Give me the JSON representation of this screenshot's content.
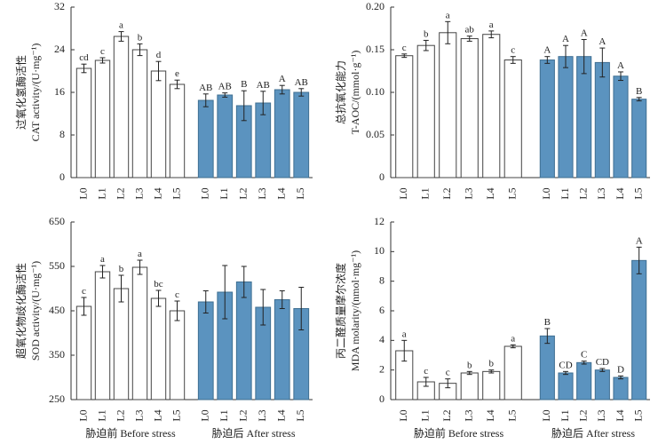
{
  "colors": {
    "after": "#5b93bf",
    "before": "#ffffff"
  },
  "chart_data": [
    {
      "type": "bar",
      "ylabel_cn": "过氧化氢酶活性",
      "ylabel_en": "CAT activity/(U·mg⁻¹)",
      "ylim": [
        0,
        32
      ],
      "yticks": [
        "0",
        "8",
        "16",
        "24",
        "32"
      ],
      "categories": [
        "L0",
        "L1",
        "L2",
        "L3",
        "L4",
        "L5"
      ],
      "group_labels": [
        "",
        ""
      ],
      "series": [
        {
          "name": "Before stress",
          "values": [
            20.5,
            22,
            26.5,
            24,
            20,
            17.5
          ],
          "errors": [
            0.8,
            0.5,
            0.9,
            1.1,
            1.8,
            0.8
          ],
          "letters": [
            "cd",
            "c",
            "a",
            "b",
            "d",
            "e"
          ]
        },
        {
          "name": "After stress",
          "values": [
            14.5,
            15.5,
            13.5,
            14,
            16.5,
            16
          ],
          "errors": [
            1.2,
            0.4,
            2.8,
            2.2,
            0.8,
            0.7
          ],
          "letters": [
            "AB",
            "AB",
            "B",
            "AB",
            "A",
            "AB"
          ]
        }
      ]
    },
    {
      "type": "bar",
      "ylabel_cn": "总抗氧化能力",
      "ylabel_en": "T-AOC/(mmol·g⁻¹)",
      "ylim": [
        0,
        0.2
      ],
      "yticks": [
        "0",
        "0.05",
        "0.10",
        "0.15",
        "0.20"
      ],
      "categories": [
        "L0",
        "L1",
        "L2",
        "L3",
        "L4",
        "L5"
      ],
      "group_labels": [
        "",
        ""
      ],
      "series": [
        {
          "name": "Before stress",
          "values": [
            0.143,
            0.155,
            0.17,
            0.163,
            0.168,
            0.138
          ],
          "errors": [
            0.002,
            0.006,
            0.013,
            0.003,
            0.004,
            0.004
          ],
          "letters": [
            "c",
            "b",
            "a",
            "ab",
            "a",
            "c"
          ]
        },
        {
          "name": "After stress",
          "values": [
            0.138,
            0.142,
            0.142,
            0.135,
            0.119,
            0.092
          ],
          "errors": [
            0.004,
            0.013,
            0.02,
            0.017,
            0.005,
            0.002
          ],
          "letters": [
            "A",
            "A",
            "A",
            "A",
            "A",
            "B"
          ]
        }
      ]
    },
    {
      "type": "bar",
      "ylabel_cn": "超氧化物歧化酶活性",
      "ylabel_en": "SOD activity/(U·mg⁻¹)",
      "ylim": [
        250,
        650
      ],
      "yticks": [
        "250",
        "350",
        "450",
        "550",
        "650"
      ],
      "categories": [
        "L0",
        "L1",
        "L2",
        "L3",
        "L4",
        "L5"
      ],
      "group_labels": [
        "胁迫前 Before stress",
        "胁迫后 After stress"
      ],
      "series": [
        {
          "name": "Before stress",
          "values": [
            460,
            538,
            500,
            548,
            478,
            450
          ],
          "errors": [
            20,
            14,
            30,
            16,
            18,
            22
          ],
          "letters": [
            "c",
            "a",
            "b",
            "a",
            "bc",
            "c"
          ]
        },
        {
          "name": "After stress",
          "values": [
            470,
            492,
            515,
            458,
            475,
            455
          ],
          "errors": [
            25,
            60,
            35,
            40,
            20,
            48
          ],
          "letters": [
            "",
            "",
            "",
            "",
            "",
            ""
          ]
        }
      ]
    },
    {
      "type": "bar",
      "ylabel_cn": "丙二醛质量摩尔浓度",
      "ylabel_en": "MDA molarity/(nmol·mg⁻¹)",
      "ylim": [
        0,
        12
      ],
      "yticks": [
        "0",
        "2",
        "4",
        "6",
        "8",
        "10",
        "12"
      ],
      "categories": [
        "L0",
        "L1",
        "L2",
        "L3",
        "L4",
        "L5"
      ],
      "group_labels": [
        "胁迫前 Before stress",
        "胁迫后 After stress"
      ],
      "series": [
        {
          "name": "Before stress",
          "values": [
            3.3,
            1.2,
            1.1,
            1.8,
            1.9,
            3.6
          ],
          "errors": [
            0.7,
            0.3,
            0.3,
            0.1,
            0.1,
            0.1
          ],
          "letters": [
            "a",
            "c",
            "c",
            "b",
            "b",
            "a"
          ]
        },
        {
          "name": "After stress",
          "values": [
            4.3,
            1.8,
            2.5,
            2.0,
            1.5,
            9.4
          ],
          "errors": [
            0.5,
            0.1,
            0.1,
            0.1,
            0.1,
            0.9
          ],
          "letters": [
            "B",
            "CD",
            "C",
            "CD",
            "D",
            "A"
          ]
        }
      ]
    }
  ]
}
